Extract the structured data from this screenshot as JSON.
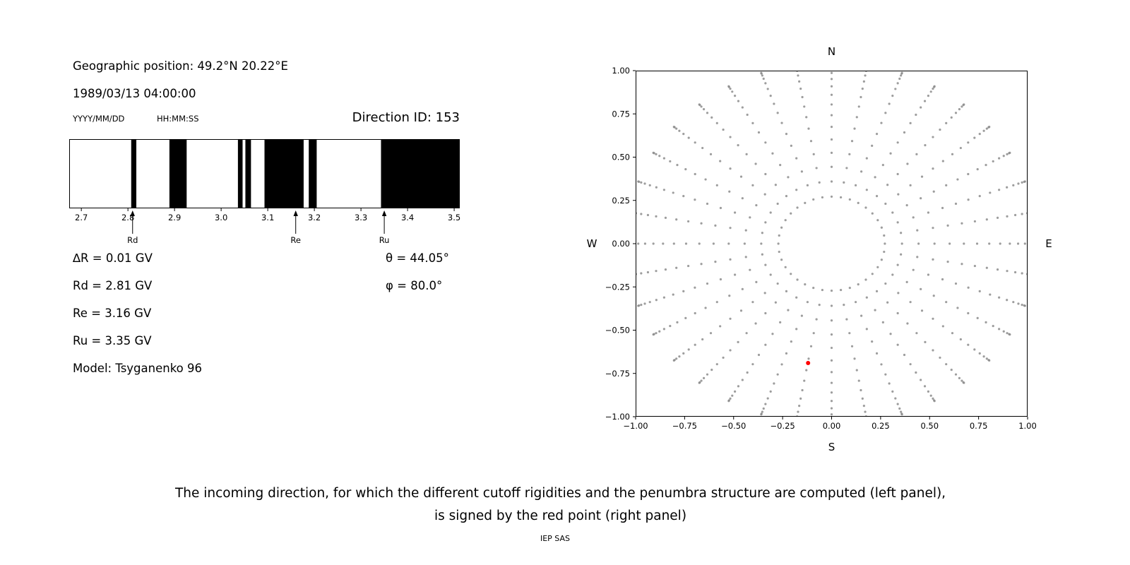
{
  "info": {
    "geographic_position": "Geographic position: 49.2°N 20.22°E",
    "datetime": "1989/03/13 04:00:00",
    "date_format_label": "YYYY/MM/DD",
    "time_format_label": "HH:MM:SS",
    "direction_id": "Direction ID: 153",
    "delta_r": "∆R = 0.01 GV",
    "rd": "Rd = 2.81 GV",
    "re": "Re = 3.16 GV",
    "ru": "Ru = 3.35 GV",
    "model": "Model: Tsyganenko 96",
    "theta": "θ = 44.05°",
    "phi": "φ = 80.0°"
  },
  "caption": {
    "line1": "The incoming direction, for which the different cutoff rigidities and the penumbra structure are computed (left panel),",
    "line2": "is signed by the red point (right panel)"
  },
  "footer": "IEP SAS",
  "chart_data": [
    {
      "type": "bar",
      "title": "",
      "description": "Penumbra structure: white = allowed, black = forbidden rigidity intervals (GV)",
      "xlim": [
        2.674,
        3.512
      ],
      "x_ticks": [
        2.7,
        2.8,
        2.9,
        3.0,
        3.1,
        3.2,
        3.3,
        3.4,
        3.5
      ],
      "x_tick_labels": [
        "2.7",
        "2.8",
        "2.9",
        "3.0",
        "3.1",
        "3.2",
        "3.3",
        "3.4",
        "3.5"
      ],
      "black_intervals_gv": [
        [
          2.807,
          2.818
        ],
        [
          2.889,
          2.926
        ],
        [
          3.036,
          3.046
        ],
        [
          3.052,
          3.064
        ],
        [
          3.093,
          3.177
        ],
        [
          3.188,
          3.205
        ],
        [
          3.343,
          3.512
        ]
      ],
      "markers": [
        {
          "label": "Rd",
          "value_gv": 2.81
        },
        {
          "label": "Re",
          "value_gv": 3.16
        },
        {
          "label": "Ru",
          "value_gv": 3.35
        }
      ],
      "bar_color": "#000000"
    },
    {
      "type": "scatter",
      "title": "",
      "description": "Grid of incoming directions projected onto horizontal plane; red point marks the selected direction",
      "xlim": [
        -1,
        1
      ],
      "ylim": [
        -1,
        1
      ],
      "ticks": [
        -1,
        -0.75,
        -0.5,
        -0.25,
        0,
        0.25,
        0.5,
        0.75,
        1
      ],
      "tick_labels": [
        "−1.00",
        "−0.75",
        "−0.50",
        "−0.25",
        "0.00",
        "0.25",
        "0.50",
        "0.75",
        "1.00"
      ],
      "compass": {
        "top": "N",
        "bottom": "S",
        "left": "W",
        "right": "E"
      },
      "grid": {
        "azimuth_step_deg": 10,
        "zenith_angles_deg": [
          15,
          20,
          25,
          30,
          35,
          40,
          45,
          50,
          55,
          60,
          65,
          70,
          75,
          80,
          85,
          90
        ],
        "radius_scale": 1.05,
        "point_color": "#8c8c8c",
        "point_opacity": 0.85
      },
      "red_point": {
        "x": -0.12,
        "y": -0.69,
        "color": "#ff0000"
      }
    }
  ]
}
